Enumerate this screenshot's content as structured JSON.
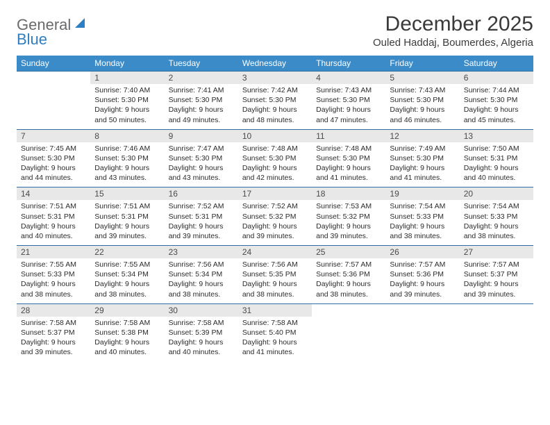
{
  "brand": {
    "word1": "General",
    "word2": "Blue"
  },
  "title": "December 2025",
  "location": "Ouled Haddaj, Boumerdes, Algeria",
  "colors": {
    "header_bg": "#3b8bc9",
    "header_text": "#ffffff",
    "daynum_bg": "#e8e8e8",
    "rule": "#2d6da3",
    "body_text": "#2b2b2b",
    "logo_gray": "#6a6a6a",
    "logo_blue": "#2d7ec2"
  },
  "day_headers": [
    "Sunday",
    "Monday",
    "Tuesday",
    "Wednesday",
    "Thursday",
    "Friday",
    "Saturday"
  ],
  "weeks": [
    [
      null,
      {
        "n": "1",
        "sr": "7:40 AM",
        "ss": "5:30 PM",
        "dl": "9 hours and 50 minutes."
      },
      {
        "n": "2",
        "sr": "7:41 AM",
        "ss": "5:30 PM",
        "dl": "9 hours and 49 minutes."
      },
      {
        "n": "3",
        "sr": "7:42 AM",
        "ss": "5:30 PM",
        "dl": "9 hours and 48 minutes."
      },
      {
        "n": "4",
        "sr": "7:43 AM",
        "ss": "5:30 PM",
        "dl": "9 hours and 47 minutes."
      },
      {
        "n": "5",
        "sr": "7:43 AM",
        "ss": "5:30 PM",
        "dl": "9 hours and 46 minutes."
      },
      {
        "n": "6",
        "sr": "7:44 AM",
        "ss": "5:30 PM",
        "dl": "9 hours and 45 minutes."
      }
    ],
    [
      {
        "n": "7",
        "sr": "7:45 AM",
        "ss": "5:30 PM",
        "dl": "9 hours and 44 minutes."
      },
      {
        "n": "8",
        "sr": "7:46 AM",
        "ss": "5:30 PM",
        "dl": "9 hours and 43 minutes."
      },
      {
        "n": "9",
        "sr": "7:47 AM",
        "ss": "5:30 PM",
        "dl": "9 hours and 43 minutes."
      },
      {
        "n": "10",
        "sr": "7:48 AM",
        "ss": "5:30 PM",
        "dl": "9 hours and 42 minutes."
      },
      {
        "n": "11",
        "sr": "7:48 AM",
        "ss": "5:30 PM",
        "dl": "9 hours and 41 minutes."
      },
      {
        "n": "12",
        "sr": "7:49 AM",
        "ss": "5:30 PM",
        "dl": "9 hours and 41 minutes."
      },
      {
        "n": "13",
        "sr": "7:50 AM",
        "ss": "5:31 PM",
        "dl": "9 hours and 40 minutes."
      }
    ],
    [
      {
        "n": "14",
        "sr": "7:51 AM",
        "ss": "5:31 PM",
        "dl": "9 hours and 40 minutes."
      },
      {
        "n": "15",
        "sr": "7:51 AM",
        "ss": "5:31 PM",
        "dl": "9 hours and 39 minutes."
      },
      {
        "n": "16",
        "sr": "7:52 AM",
        "ss": "5:31 PM",
        "dl": "9 hours and 39 minutes."
      },
      {
        "n": "17",
        "sr": "7:52 AM",
        "ss": "5:32 PM",
        "dl": "9 hours and 39 minutes."
      },
      {
        "n": "18",
        "sr": "7:53 AM",
        "ss": "5:32 PM",
        "dl": "9 hours and 39 minutes."
      },
      {
        "n": "19",
        "sr": "7:54 AM",
        "ss": "5:33 PM",
        "dl": "9 hours and 38 minutes."
      },
      {
        "n": "20",
        "sr": "7:54 AM",
        "ss": "5:33 PM",
        "dl": "9 hours and 38 minutes."
      }
    ],
    [
      {
        "n": "21",
        "sr": "7:55 AM",
        "ss": "5:33 PM",
        "dl": "9 hours and 38 minutes."
      },
      {
        "n": "22",
        "sr": "7:55 AM",
        "ss": "5:34 PM",
        "dl": "9 hours and 38 minutes."
      },
      {
        "n": "23",
        "sr": "7:56 AM",
        "ss": "5:34 PM",
        "dl": "9 hours and 38 minutes."
      },
      {
        "n": "24",
        "sr": "7:56 AM",
        "ss": "5:35 PM",
        "dl": "9 hours and 38 minutes."
      },
      {
        "n": "25",
        "sr": "7:57 AM",
        "ss": "5:36 PM",
        "dl": "9 hours and 38 minutes."
      },
      {
        "n": "26",
        "sr": "7:57 AM",
        "ss": "5:36 PM",
        "dl": "9 hours and 39 minutes."
      },
      {
        "n": "27",
        "sr": "7:57 AM",
        "ss": "5:37 PM",
        "dl": "9 hours and 39 minutes."
      }
    ],
    [
      {
        "n": "28",
        "sr": "7:58 AM",
        "ss": "5:37 PM",
        "dl": "9 hours and 39 minutes."
      },
      {
        "n": "29",
        "sr": "7:58 AM",
        "ss": "5:38 PM",
        "dl": "9 hours and 40 minutes."
      },
      {
        "n": "30",
        "sr": "7:58 AM",
        "ss": "5:39 PM",
        "dl": "9 hours and 40 minutes."
      },
      {
        "n": "31",
        "sr": "7:58 AM",
        "ss": "5:40 PM",
        "dl": "9 hours and 41 minutes."
      },
      null,
      null,
      null
    ]
  ],
  "labels": {
    "sunrise": "Sunrise:",
    "sunset": "Sunset:",
    "daylight": "Daylight:"
  }
}
